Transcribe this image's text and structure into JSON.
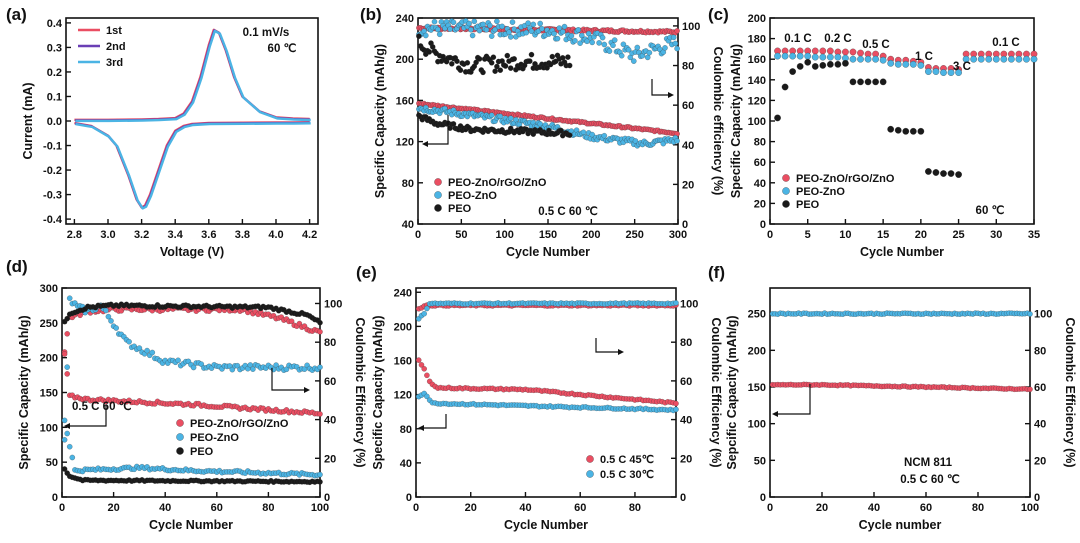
{
  "figure": {
    "colors": {
      "red": "#ea4e62",
      "blue": "#4bb4e4",
      "black": "#1a1a1a",
      "purple": "#6a3fb5",
      "frame": "#111111"
    }
  },
  "chart_data": [
    {
      "id": "a",
      "type": "line",
      "panel_label": "(a)",
      "xlabel": "Voltage (V)",
      "ylabel": "Current (mA)",
      "xlim": [
        2.75,
        4.25
      ],
      "ylim": [
        -0.42,
        0.42
      ],
      "xticks": [
        2.8,
        3.0,
        3.2,
        3.4,
        3.6,
        3.8,
        4.0,
        4.2
      ],
      "xtick_labels": [
        "2.8",
        "3.0",
        "3.2",
        "3.4",
        "3.6",
        "3.8",
        "4.0",
        "4.2"
      ],
      "yticks": [
        -0.4,
        -0.3,
        -0.2,
        -0.1,
        0.0,
        0.1,
        0.2,
        0.3,
        0.4
      ],
      "ytick_labels": [
        "-0.4",
        "-0.3",
        "-0.2",
        "-0.1",
        "0.0",
        "0.1",
        "0.2",
        "0.3",
        "0.4"
      ],
      "annotations": [
        "0.1 mV/s",
        "60 ℃"
      ],
      "series": [
        {
          "name": "1st",
          "color": "#ea4e62",
          "mode": "line"
        },
        {
          "name": "2nd",
          "color": "#6a3fb5",
          "mode": "line"
        },
        {
          "name": "3rd",
          "color": "#4bb4e4",
          "mode": "line"
        }
      ],
      "anodic_curve": {
        "x": [
          2.8,
          3.0,
          3.2,
          3.3,
          3.4,
          3.45,
          3.5,
          3.55,
          3.6,
          3.63,
          3.66,
          3.7,
          3.75,
          3.8,
          3.9,
          4.0,
          4.1,
          4.2
        ],
        "y": [
          0.005,
          0.005,
          0.006,
          0.008,
          0.012,
          0.03,
          0.08,
          0.18,
          0.31,
          0.372,
          0.36,
          0.29,
          0.18,
          0.1,
          0.04,
          0.015,
          0.01,
          0.008
        ]
      },
      "cathodic_curve": {
        "x": [
          4.2,
          4.1,
          4.0,
          3.8,
          3.6,
          3.5,
          3.45,
          3.4,
          3.35,
          3.3,
          3.25,
          3.22,
          3.2,
          3.17,
          3.12,
          3.05,
          3.0,
          2.9,
          2.8
        ],
        "y": [
          -0.005,
          -0.006,
          -0.006,
          -0.007,
          -0.008,
          -0.012,
          -0.02,
          -0.04,
          -0.1,
          -0.2,
          -0.3,
          -0.345,
          -0.352,
          -0.32,
          -0.22,
          -0.1,
          -0.06,
          -0.02,
          -0.008
        ]
      }
    },
    {
      "id": "b",
      "type": "scatter",
      "panel_label": "(b)",
      "xlabel": "Cycle Number",
      "ylabel": "Specific Capacity (mAh/g)",
      "y2label": "Coulombic efficiency (%)",
      "xlim": [
        0,
        300
      ],
      "ylim": [
        40,
        240
      ],
      "y2lim": [
        0,
        104
      ],
      "xticks": [
        0,
        50,
        100,
        150,
        200,
        250,
        300
      ],
      "xtick_labels": [
        "0",
        "50",
        "100",
        "150",
        "200",
        "250",
        "300"
      ],
      "yticks": [
        40,
        80,
        120,
        160,
        200,
        240
      ],
      "ytick_labels": [
        "40",
        "80",
        "120",
        "160",
        "200",
        "240"
      ],
      "y2ticks": [
        0,
        20,
        40,
        60,
        80,
        100
      ],
      "y2tick_labels": [
        "0",
        "20",
        "40",
        "60",
        "80",
        "100"
      ],
      "annotations": [
        "0.5 C 60 ℃"
      ],
      "series": [
        {
          "name": "PEO-ZnO/rGO/ZnO",
          "color": "#ea4e62",
          "mode": "scatter"
        },
        {
          "name": "PEO-ZnO",
          "color": "#4bb4e4",
          "mode": "scatter"
        },
        {
          "name": "PEO",
          "color": "#1a1a1a",
          "mode": "scatter"
        }
      ],
      "trends": [
        {
          "color": "#ea4e62",
          "axis": "y2",
          "from": 1,
          "to": 300,
          "x": [
            0,
            300
          ],
          "y": [
            99,
            97
          ],
          "noise": 0.6
        },
        {
          "color": "#4bb4e4",
          "axis": "y2",
          "from": 1,
          "to": 300,
          "x": [
            0,
            150,
            200,
            250,
            300
          ],
          "y": [
            99,
            98,
            94,
            85,
            92
          ],
          "noise": 4
        },
        {
          "color": "#1a1a1a",
          "axis": "y2",
          "from": 1,
          "to": 175,
          "x": [
            0,
            20,
            60,
            120,
            175
          ],
          "y": [
            92,
            86,
            80,
            82,
            82
          ],
          "noise": 4
        },
        {
          "color": "#ea4e62",
          "axis": "y",
          "from": 1,
          "to": 300,
          "x": [
            0,
            300
          ],
          "y": [
            157,
            128
          ],
          "noise": 0.8
        },
        {
          "color": "#4bb4e4",
          "axis": "y",
          "from": 1,
          "to": 300,
          "x": [
            0,
            150,
            200,
            260,
            300
          ],
          "y": [
            153,
            135,
            125,
            118,
            122
          ],
          "noise": 3
        },
        {
          "color": "#1a1a1a",
          "axis": "y",
          "from": 1,
          "to": 175,
          "x": [
            0,
            20,
            60,
            120,
            175
          ],
          "y": [
            145,
            138,
            132,
            130,
            128
          ],
          "noise": 2.5
        }
      ]
    },
    {
      "id": "c",
      "type": "scatter",
      "panel_label": "(c)",
      "xlabel": "Cycle Number",
      "ylabel": "Specific Capacity (mAh/g)",
      "xlim": [
        0,
        35
      ],
      "ylim": [
        0,
        200
      ],
      "xticks": [
        0,
        5,
        10,
        15,
        20,
        25,
        30,
        35
      ],
      "xtick_labels": [
        "0",
        "5",
        "10",
        "15",
        "20",
        "25",
        "30",
        "35"
      ],
      "yticks": [
        0,
        20,
        40,
        60,
        80,
        100,
        120,
        140,
        160,
        180,
        200
      ],
      "ytick_labels": [
        "0",
        "20",
        "40",
        "60",
        "80",
        "100",
        "120",
        "140",
        "160",
        "180",
        "200"
      ],
      "rate_labels": [
        "0.1 C",
        "0.2 C",
        "0.5 C",
        "1 C",
        "3 C",
        "0.1 C"
      ],
      "annotations": [
        "60 ℃"
      ],
      "series": [
        {
          "name": "PEO-ZnO/rGO/ZnO",
          "color": "#ea4e62",
          "mode": "scatter"
        },
        {
          "name": "PEO-ZnO",
          "color": "#4bb4e4",
          "mode": "scatter"
        },
        {
          "name": "PEO",
          "color": "#1a1a1a",
          "mode": "scatter"
        }
      ],
      "points": [
        {
          "color": "#ea4e62",
          "x": [
            1,
            2,
            3,
            4,
            5,
            6,
            7,
            8,
            9,
            10,
            11,
            12,
            13,
            14,
            15,
            16,
            17,
            18,
            19,
            20,
            21,
            22,
            23,
            24,
            25,
            26,
            27,
            28,
            29,
            30,
            31,
            32,
            33,
            34,
            35
          ],
          "y": [
            168,
            168,
            168,
            168,
            168,
            168,
            168,
            168,
            167,
            167,
            167,
            166,
            165,
            165,
            163,
            160,
            159,
            159,
            158,
            157,
            152,
            151,
            151,
            151,
            150,
            165,
            165,
            165,
            165,
            165,
            165,
            165,
            165,
            165,
            165
          ]
        },
        {
          "color": "#4bb4e4",
          "x": [
            1,
            2,
            3,
            4,
            5,
            6,
            7,
            8,
            9,
            10,
            11,
            12,
            13,
            14,
            15,
            16,
            17,
            18,
            19,
            20,
            21,
            22,
            23,
            24,
            25,
            26,
            27,
            28,
            29,
            30,
            31,
            32,
            33,
            34,
            35
          ],
          "y": [
            163,
            163,
            163,
            163,
            163,
            162,
            162,
            162,
            162,
            161,
            160,
            160,
            160,
            160,
            159,
            156,
            155,
            155,
            155,
            154,
            148,
            148,
            147,
            147,
            147,
            160,
            160,
            160,
            160,
            160,
            160,
            160,
            160,
            160,
            160
          ]
        },
        {
          "color": "#1a1a1a",
          "x": [
            1,
            2,
            3,
            4,
            5,
            6,
            7,
            8,
            9,
            10,
            11,
            12,
            13,
            14,
            15,
            16,
            17,
            18,
            19,
            20,
            21,
            22,
            23,
            24,
            25
          ],
          "y": [
            103,
            133,
            148,
            153,
            157,
            153,
            154,
            155,
            155,
            156,
            138,
            138,
            138,
            138,
            138,
            92,
            91,
            90,
            90,
            90,
            51,
            50,
            49,
            49,
            48
          ]
        }
      ]
    },
    {
      "id": "d",
      "type": "scatter",
      "panel_label": "(d)",
      "xlabel": "Cycle Number",
      "ylabel": "Specific Capacity (mAh/g)",
      "y2label": "Coulombic Efficiency (%)",
      "xlim": [
        0,
        100
      ],
      "ylim": [
        0,
        300
      ],
      "y2lim": [
        0,
        108
      ],
      "xticks": [
        0,
        20,
        40,
        60,
        80,
        100
      ],
      "xtick_labels": [
        "0",
        "20",
        "40",
        "60",
        "80",
        "100"
      ],
      "yticks": [
        0,
        50,
        100,
        150,
        200,
        250,
        300
      ],
      "ytick_labels": [
        "0",
        "50",
        "100",
        "150",
        "200",
        "250",
        "300"
      ],
      "y2ticks": [
        0,
        20,
        40,
        60,
        80,
        100
      ],
      "y2tick_labels": [
        "0",
        "20",
        "40",
        "60",
        "80",
        "100"
      ],
      "annotations": [
        "0.5 C 60 ℃"
      ],
      "series": [
        {
          "name": "PEO-ZnO/rGO/ZnO",
          "color": "#ea4e62",
          "mode": "scatter"
        },
        {
          "name": "PEO-ZnO",
          "color": "#4bb4e4",
          "mode": "scatter"
        },
        {
          "name": "PEO",
          "color": "#1a1a1a",
          "mode": "scatter"
        }
      ],
      "trends": [
        {
          "color": "#ea4e62",
          "axis": "y2",
          "from": 1,
          "to": 100,
          "x": [
            1,
            3,
            10,
            20,
            70,
            85,
            100
          ],
          "y": [
            75,
            93,
            96,
            97,
            97,
            92,
            85
          ],
          "noise": 1
        },
        {
          "color": "#4bb4e4",
          "axis": "y2",
          "from": 1,
          "to": 100,
          "x": [
            1,
            3,
            6,
            10,
            15,
            25,
            40,
            60,
            80,
            100
          ],
          "y": [
            30,
            102,
            98,
            96,
            99,
            80,
            70,
            67,
            67,
            67
          ],
          "noise": 1.5
        },
        {
          "color": "#1a1a1a",
          "axis": "y2",
          "from": 1,
          "to": 100,
          "x": [
            1,
            3,
            10,
            20,
            80,
            95,
            100
          ],
          "y": [
            90,
            95,
            98,
            99,
            98,
            94,
            90
          ],
          "noise": 0.7
        },
        {
          "color": "#ea4e62",
          "axis": "y",
          "from": 1,
          "to": 100,
          "x": [
            1,
            3,
            10,
            50,
            100
          ],
          "y": [
            205,
            145,
            140,
            133,
            120
          ],
          "noise": 2
        },
        {
          "color": "#4bb4e4",
          "axis": "y",
          "from": 1,
          "to": 100,
          "x": [
            1,
            5,
            30,
            50,
            100
          ],
          "y": [
            110,
            38,
            42,
            38,
            32
          ],
          "noise": 2
        },
        {
          "color": "#1a1a1a",
          "axis": "y",
          "from": 1,
          "to": 100,
          "x": [
            1,
            3,
            8,
            100
          ],
          "y": [
            40,
            30,
            24,
            22
          ],
          "noise": 1
        }
      ]
    },
    {
      "id": "e",
      "type": "scatter",
      "panel_label": "(e)",
      "xlabel": "Cycle Number",
      "ylabel": "Specific Capacity (mAh/g)",
      "y2label": "Coulombic Efficiency (%)",
      "xlim": [
        0,
        95
      ],
      "ylim": [
        0,
        245
      ],
      "y2lim": [
        0,
        108
      ],
      "xticks": [
        0,
        20,
        40,
        60,
        80
      ],
      "xtick_labels": [
        "0",
        "20",
        "40",
        "60",
        "80"
      ],
      "yticks": [
        0,
        40,
        80,
        120,
        160,
        200,
        240
      ],
      "ytick_labels": [
        "0",
        "40",
        "80",
        "120",
        "160",
        "200",
        "240"
      ],
      "y2ticks": [
        0,
        20,
        40,
        60,
        80,
        100
      ],
      "y2tick_labels": [
        "0",
        "20",
        "40",
        "60",
        "80",
        "100"
      ],
      "series": [
        {
          "name": "0.5 C 45℃",
          "color": "#ea4e62",
          "mode": "scatter"
        },
        {
          "name": "0.5 C 30℃",
          "color": "#4bb4e4",
          "mode": "scatter"
        }
      ],
      "trends": [
        {
          "color": "#ea4e62",
          "axis": "y2",
          "from": 1,
          "to": 95,
          "x": [
            1,
            3,
            95
          ],
          "y": [
            97,
            99,
            99
          ],
          "noise": 0.3
        },
        {
          "color": "#4bb4e4",
          "axis": "y2",
          "from": 1,
          "to": 95,
          "x": [
            1,
            3,
            5,
            95
          ],
          "y": [
            92,
            95,
            100,
            100
          ],
          "noise": 0.3
        },
        {
          "color": "#ea4e62",
          "axis": "y",
          "from": 1,
          "to": 95,
          "x": [
            1,
            3,
            5,
            8,
            40,
            95
          ],
          "y": [
            160,
            150,
            135,
            128,
            126,
            110
          ],
          "noise": 0.8
        },
        {
          "color": "#4bb4e4",
          "axis": "y",
          "from": 1,
          "to": 95,
          "x": [
            1,
            3,
            6,
            95
          ],
          "y": [
            118,
            122,
            110,
            102
          ],
          "noise": 0.8
        }
      ]
    },
    {
      "id": "f",
      "type": "scatter",
      "panel_label": "(f)",
      "xlabel": "Cycle number",
      "ylabel": "Sepcific Capacity (mAh/g)",
      "y2label": "Coulombic Efficiency (%)",
      "xlim": [
        0,
        100
      ],
      "ylim": [
        0,
        285
      ],
      "y2lim": [
        0,
        114
      ],
      "xticks": [
        0,
        20,
        40,
        60,
        80,
        100
      ],
      "xtick_labels": [
        "0",
        "20",
        "40",
        "60",
        "80",
        "100"
      ],
      "yticks": [
        0,
        50,
        100,
        150,
        200,
        250
      ],
      "ytick_labels": [
        "0",
        "50",
        "100",
        "150",
        "200",
        "250"
      ],
      "y2ticks": [
        0,
        20,
        40,
        60,
        80,
        100
      ],
      "y2tick_labels": [
        "0",
        "20",
        "40",
        "60",
        "80",
        "100"
      ],
      "annotations": [
        "NCM 811",
        "0.5 C 60 ℃"
      ],
      "series": [
        {
          "name": "Coulombic efficiency",
          "color": "#4bb4e4",
          "mode": "scatter"
        },
        {
          "name": "Specific capacity",
          "color": "#ea4e62",
          "mode": "scatter"
        }
      ],
      "trends": [
        {
          "color": "#4bb4e4",
          "axis": "y2",
          "from": 1,
          "to": 100,
          "x": [
            1,
            100
          ],
          "y": [
            100,
            100
          ],
          "noise": 0.3
        },
        {
          "color": "#ea4e62",
          "axis": "y",
          "from": 1,
          "to": 100,
          "x": [
            1,
            20,
            100
          ],
          "y": [
            153,
            153,
            147
          ],
          "noise": 0.6
        }
      ]
    }
  ]
}
